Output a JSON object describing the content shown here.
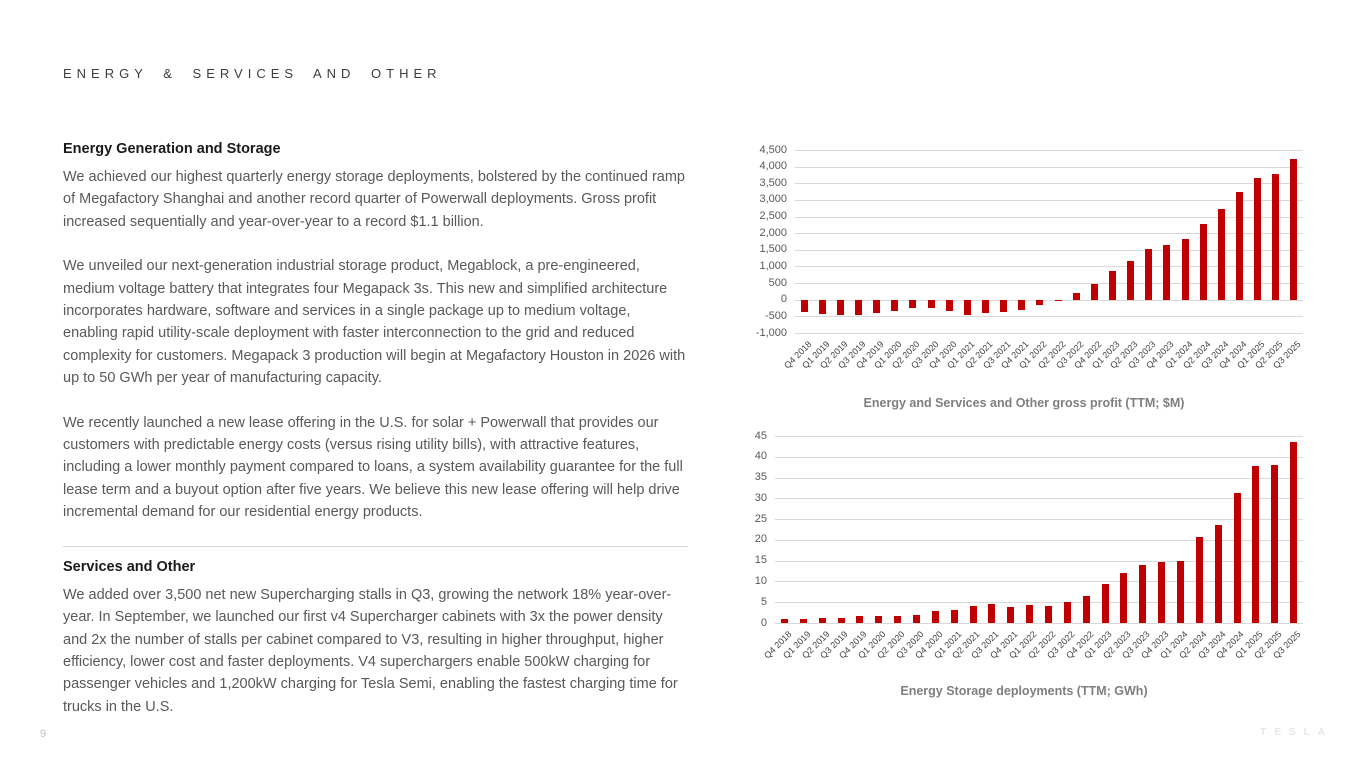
{
  "page": {
    "eyebrow": "ENERGY & SERVICES AND OTHER",
    "page_number": "9",
    "watermark": "TESLA"
  },
  "sections": [
    {
      "heading": "Energy Generation and Storage",
      "paragraphs": [
        "We achieved our highest quarterly energy storage deployments, bolstered by the continued ramp of Megafactory Shanghai and another record quarter of Powerwall deployments. Gross profit increased sequentially and year-over-year to a record $1.1 billion.",
        "We unveiled our next-generation industrial storage product, Megablock, a pre-engineered, medium voltage battery that integrates four Megapack 3s. This new and simplified architecture incorporates hardware, software and services in a single package up to medium voltage, enabling rapid utility-scale deployment with faster interconnection to the grid and reduced complexity for customers. Megapack 3 production will begin at Megafactory Houston in 2026 with up to 50 GWh per year of manufacturing capacity.",
        "We recently launched a new lease offering in the U.S. for solar + Powerwall that provides our customers with predictable energy costs (versus rising utility bills), with attractive features, including a lower monthly payment compared to loans, a system availability guarantee for the full lease term and a buyout option after five years. We believe this new lease offering will help drive incremental demand for our residential energy products."
      ]
    },
    {
      "heading": "Services and Other",
      "paragraphs": [
        "We added over 3,500 net new Supercharging stalls in Q3, growing the network 18% year-over-year. In September, we launched our first v4 Supercharger cabinets with 3x the power density and 2x the number of stalls per cabinet compared to V3, resulting in higher throughput, higher efficiency, lower cost and faster deployments. V4 superchargers enable 500kW charging for passenger vehicles and 1,200kW charging for Tesla Semi, enabling the fastest charging time for trucks in the U.S."
      ]
    }
  ],
  "colors": {
    "bar_red": "#C00000",
    "gridline": "#D9D9D9",
    "chart_title_gray": "#7F7F7F"
  },
  "chart_data": [
    {
      "type": "bar",
      "title": "Energy and Services and Other gross profit (TTM; $M)",
      "xlabel": "",
      "ylabel": "",
      "ylim": [
        -1000,
        4500
      ],
      "ytick": 500,
      "grid": true,
      "legend": "none",
      "categories": [
        "Q4 2018",
        "Q1 2019",
        "Q2 2019",
        "Q3 2019",
        "Q4 2019",
        "Q1 2020",
        "Q2 2020",
        "Q3 2020",
        "Q4 2020",
        "Q1 2021",
        "Q2 2021",
        "Q3 2021",
        "Q4 2021",
        "Q1 2022",
        "Q2 2022",
        "Q3 2022",
        "Q4 2022",
        "Q1 2023",
        "Q2 2023",
        "Q3 2023",
        "Q4 2023",
        "Q1 2024",
        "Q2 2024",
        "Q3 2024",
        "Q4 2024",
        "Q1 2025",
        "Q2 2025",
        "Q3 2025"
      ],
      "values": [
        -370,
        -430,
        -470,
        -450,
        -400,
        -330,
        -260,
        -240,
        -330,
        -450,
        -410,
        -380,
        -300,
        -150,
        -30,
        200,
        480,
        870,
        1170,
        1520,
        1630,
        1820,
        2280,
        2730,
        3250,
        3650,
        3770,
        4230
      ]
    },
    {
      "type": "bar",
      "title": "Energy Storage deployments (TTM; GWh)",
      "xlabel": "",
      "ylabel": "",
      "ylim": [
        0,
        45
      ],
      "ytick": 5,
      "grid": true,
      "legend": "none",
      "categories": [
        "Q4 2018",
        "Q1 2019",
        "Q2 2019",
        "Q3 2019",
        "Q4 2019",
        "Q1 2020",
        "Q2 2020",
        "Q3 2020",
        "Q4 2020",
        "Q1 2021",
        "Q2 2021",
        "Q3 2021",
        "Q4 2021",
        "Q1 2022",
        "Q2 2022",
        "Q3 2022",
        "Q4 2022",
        "Q1 2023",
        "Q2 2023",
        "Q3 2023",
        "Q4 2023",
        "Q1 2024",
        "Q2 2024",
        "Q3 2024",
        "Q4 2024",
        "Q1 2025",
        "Q2 2025",
        "Q3 2025"
      ],
      "values": [
        1.0,
        0.9,
        1.1,
        1.3,
        1.65,
        1.7,
        1.7,
        2.0,
        2.9,
        3.2,
        4.0,
        4.6,
        3.9,
        4.3,
        4.2,
        5.0,
        6.5,
        9.5,
        12.0,
        13.9,
        14.7,
        14.9,
        20.6,
        23.5,
        31.4,
        37.7,
        38.0,
        43.5
      ]
    }
  ]
}
